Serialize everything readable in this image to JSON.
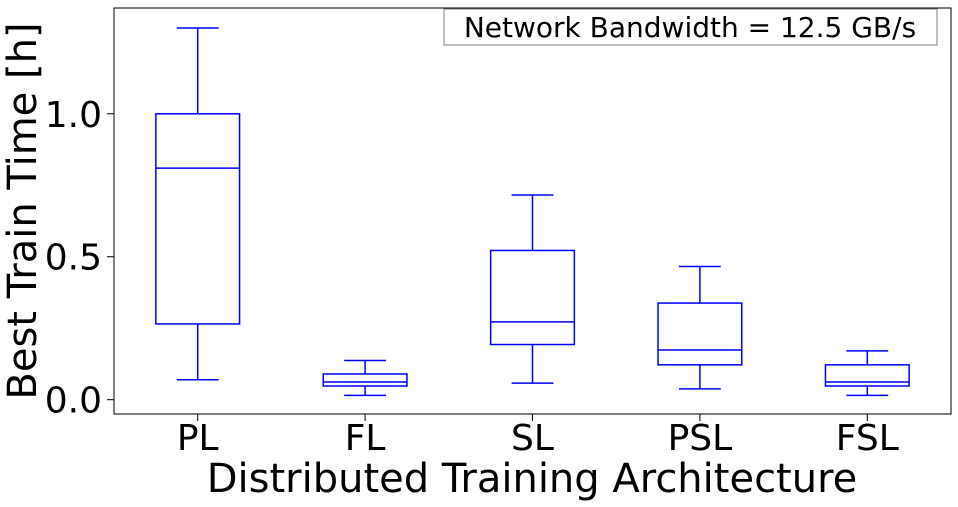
{
  "chart_data": {
    "type": "box",
    "annotation": "Network Bandwidth = 12.5 GB/s",
    "xlabel": "Distributed Training Architecture",
    "ylabel": "Best Train Time [h]",
    "ylim": [
      -0.05,
      1.37
    ],
    "yticks": [
      0.0,
      0.5,
      1.0
    ],
    "ytick_labels": [
      "0.0",
      "0.5",
      "1.0"
    ],
    "categories": [
      "PL",
      "FL",
      "SL",
      "PSL",
      "FSL"
    ],
    "boxes": [
      {
        "label": "PL",
        "whisker_low": 0.07,
        "q1": 0.265,
        "median": 0.81,
        "q3": 1.0,
        "whisker_high": 1.3
      },
      {
        "label": "FL",
        "whisker_low": 0.015,
        "q1": 0.048,
        "median": 0.062,
        "q3": 0.09,
        "whisker_high": 0.137
      },
      {
        "label": "SL",
        "whisker_low": 0.058,
        "q1": 0.193,
        "median": 0.272,
        "q3": 0.522,
        "whisker_high": 0.716
      },
      {
        "label": "PSL",
        "whisker_low": 0.038,
        "q1": 0.122,
        "median": 0.174,
        "q3": 0.338,
        "whisker_high": 0.466
      },
      {
        "label": "FSL",
        "whisker_low": 0.015,
        "q1": 0.048,
        "median": 0.062,
        "q3": 0.122,
        "whisker_high": 0.171
      }
    ],
    "color": "#0000ff",
    "grid": false
  }
}
